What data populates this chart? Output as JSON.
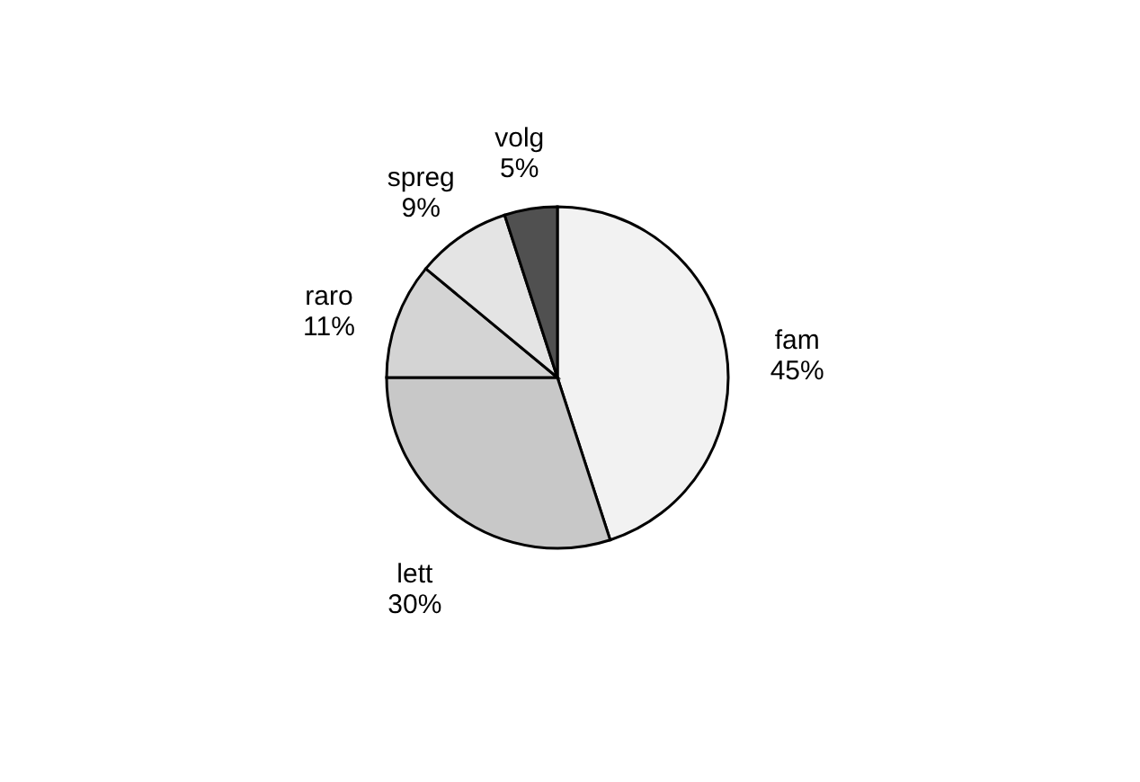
{
  "chart_data": {
    "type": "pie",
    "categories": [
      "fam",
      "lett",
      "raro",
      "spreg",
      "volg"
    ],
    "values": [
      45,
      30,
      11,
      9,
      5
    ],
    "value_labels": [
      "45%",
      "30%",
      "11%",
      "9%",
      "5%"
    ],
    "colors": [
      "#f2f2f2",
      "#c8c8c8",
      "#d4d4d4",
      "#e4e4e4",
      "#505050"
    ],
    "legend": false
  }
}
